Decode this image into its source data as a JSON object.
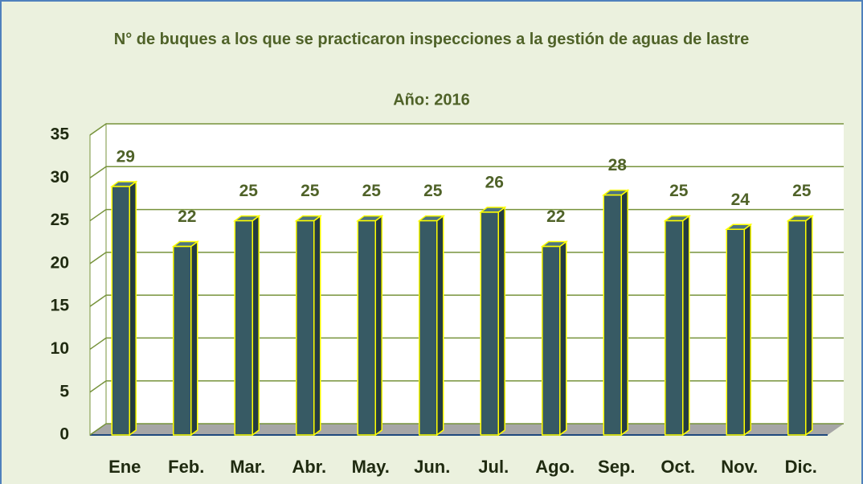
{
  "chart_data": {
    "type": "bar3d",
    "title": "N° de buques a los que se practicaron inspecciones a la gestión de aguas de lastre",
    "subtitle": "Año: 2016",
    "categories": [
      "Ene",
      "Feb.",
      "Mar.",
      "Abr.",
      "May.",
      "Jun.",
      "Jul.",
      "Ago.",
      "Sep.",
      "Oct.",
      "Nov.",
      "Dic."
    ],
    "values": [
      29,
      22,
      25,
      25,
      25,
      25,
      26,
      22,
      28,
      25,
      24,
      25
    ],
    "color": "#375a64",
    "ylim": [
      0,
      35
    ],
    "yticks": [
      0,
      5,
      10,
      15,
      20,
      25,
      30,
      35
    ],
    "grid": true
  }
}
